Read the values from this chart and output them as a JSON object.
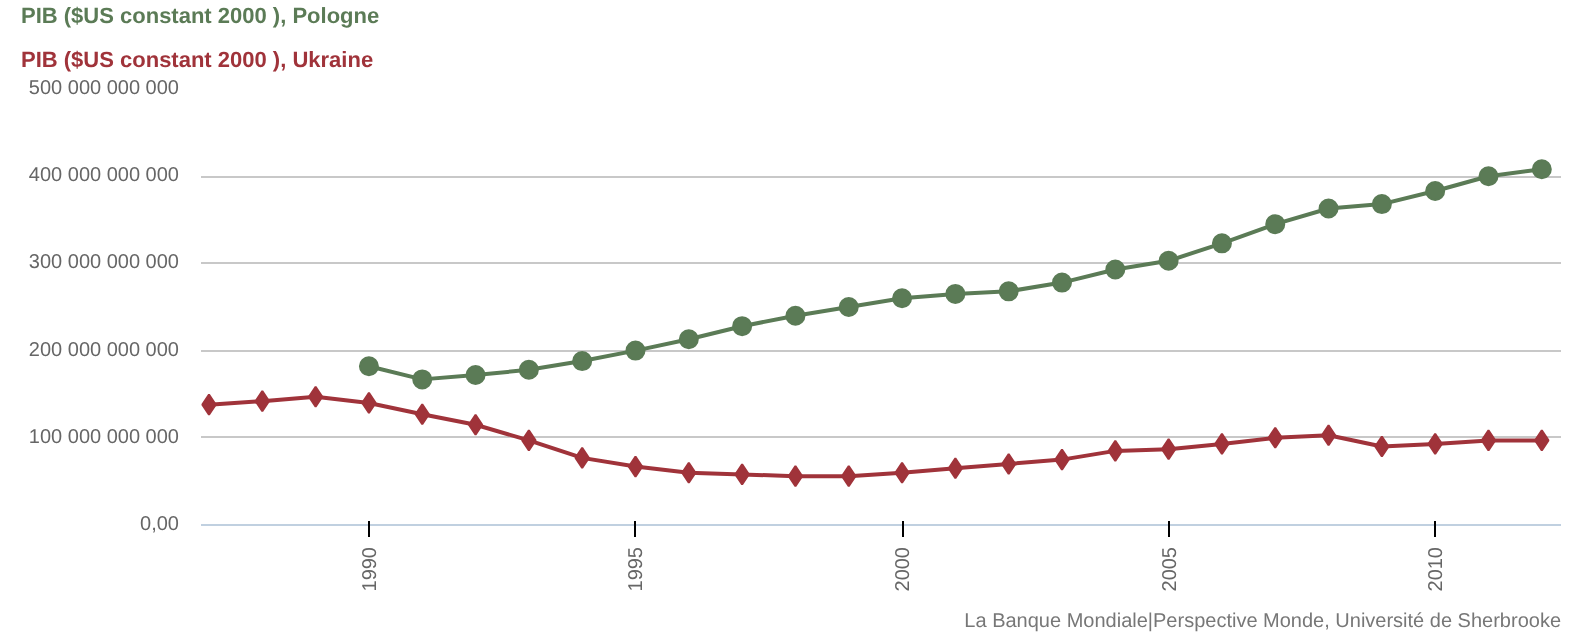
{
  "chart_data": {
    "type": "line",
    "x": [
      1987,
      1988,
      1989,
      1990,
      1991,
      1992,
      1993,
      1994,
      1995,
      1996,
      1997,
      1998,
      1999,
      2000,
      2001,
      2002,
      2003,
      2004,
      2005,
      2006,
      2007,
      2008,
      2009,
      2010,
      2011,
      2012
    ],
    "series": [
      {
        "name": "PIB ($US constant 2000 ), Pologne",
        "color": "#5b7b56",
        "marker": "circle",
        "x": [
          1990,
          1991,
          1992,
          1993,
          1994,
          1995,
          1996,
          1997,
          1998,
          1999,
          2000,
          2001,
          2002,
          2003,
          2004,
          2005,
          2006,
          2007,
          2008,
          2009,
          2010,
          2011,
          2012
        ],
        "values": [
          182000000000.0,
          167000000000.0,
          172000000000.0,
          178000000000.0,
          188000000000.0,
          200000000000.0,
          213000000000.0,
          228000000000.0,
          240000000000.0,
          250000000000.0,
          260000000000.0,
          265000000000.0,
          268000000000.0,
          278000000000.0,
          293000000000.0,
          303000000000.0,
          323000000000.0,
          345000000000.0,
          363000000000.0,
          368000000000.0,
          383000000000.0,
          400000000000.0,
          408000000000.0
        ]
      },
      {
        "name": "PIB ($US constant 2000 ), Ukraine",
        "color": "#a0333a",
        "marker": "diamond",
        "values": [
          138000000000.0,
          142000000000.0,
          147000000000.0,
          140000000000.0,
          127000000000.0,
          115000000000.0,
          97000000000.0,
          77000000000.0,
          67000000000.0,
          60000000000.0,
          58000000000.0,
          56000000000.0,
          56000000000.0,
          60000000000.0,
          65000000000.0,
          70000000000.0,
          75000000000.0,
          85000000000.0,
          87000000000.0,
          93000000000.0,
          100000000000.0,
          103000000000.0,
          90000000000.0,
          93000000000.0,
          97000000000.0,
          97000000000.0
        ]
      }
    ],
    "xlim": [
      1986.85,
      2012.36
    ],
    "xticks": [
      1990,
      1995,
      2000,
      2005,
      2010
    ],
    "ylim": [
      0,
      500000000000.0
    ],
    "yticks": [
      {
        "value": 0,
        "label": "0,00"
      },
      {
        "value": 100000000000.0,
        "label": "100 000 000 000"
      },
      {
        "value": 200000000000.0,
        "label": "200 000 000 000"
      },
      {
        "value": 300000000000.0,
        "label": "300 000 000 000"
      },
      {
        "value": 400000000000.0,
        "label": "400 000 000 000"
      },
      {
        "value": 500000000000.0,
        "label": "500 000 000 000"
      }
    ],
    "grid": "y",
    "legend": "top left",
    "line_style": "solid",
    "annotations": [
      "La Banque Mondiale|Perspective Monde, Université de Sherbrooke"
    ]
  }
}
